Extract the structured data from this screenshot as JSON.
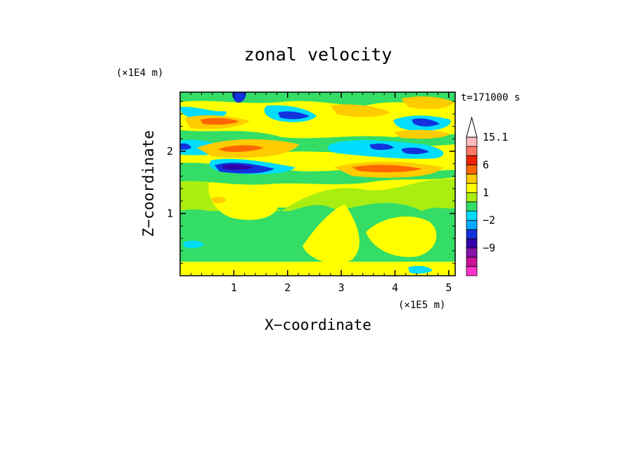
{
  "chart_data": {
    "type": "heatmap",
    "title": "zonal velocity",
    "xlabel": "X−coordinate",
    "ylabel": "Z−coordinate",
    "x_unit": "(×1E5 m)",
    "y_unit": "(×1E4 m)",
    "time_label": "t=171000 s",
    "xlim": [
      0,
      5.12
    ],
    "ylim": [
      0,
      2.95
    ],
    "x_ticks": [
      {
        "value": 1,
        "label": "1"
      },
      {
        "value": 2,
        "label": "2"
      },
      {
        "value": 3,
        "label": "3"
      },
      {
        "value": 4,
        "label": "4"
      },
      {
        "value": 5,
        "label": "5"
      }
    ],
    "y_ticks": [
      {
        "value": 1,
        "label": "1"
      },
      {
        "value": 2,
        "label": "2"
      }
    ],
    "colorbar": {
      "levels": [
        -15,
        -12,
        -9,
        -6,
        -3,
        -2,
        -1,
        0,
        1,
        2,
        3,
        6,
        9,
        12,
        15.1
      ],
      "colors": [
        "#ff33cc",
        "#cc1199",
        "#8811aa",
        "#3300aa",
        "#1133dd",
        "#00aaff",
        "#00ddff",
        "#33dd66",
        "#aaee11",
        "#ffff00",
        "#ffcc00",
        "#ff6600",
        "#ee2200",
        "#ff7766",
        "#ffbbbb"
      ],
      "labels": [
        {
          "value": -9,
          "label": "−9"
        },
        {
          "value": -2,
          "label": "−2"
        },
        {
          "value": 1,
          "label": "1"
        },
        {
          "value": 6,
          "label": "6"
        },
        {
          "value": 15.1,
          "label": "15.1"
        }
      ],
      "extend": "max"
    }
  }
}
